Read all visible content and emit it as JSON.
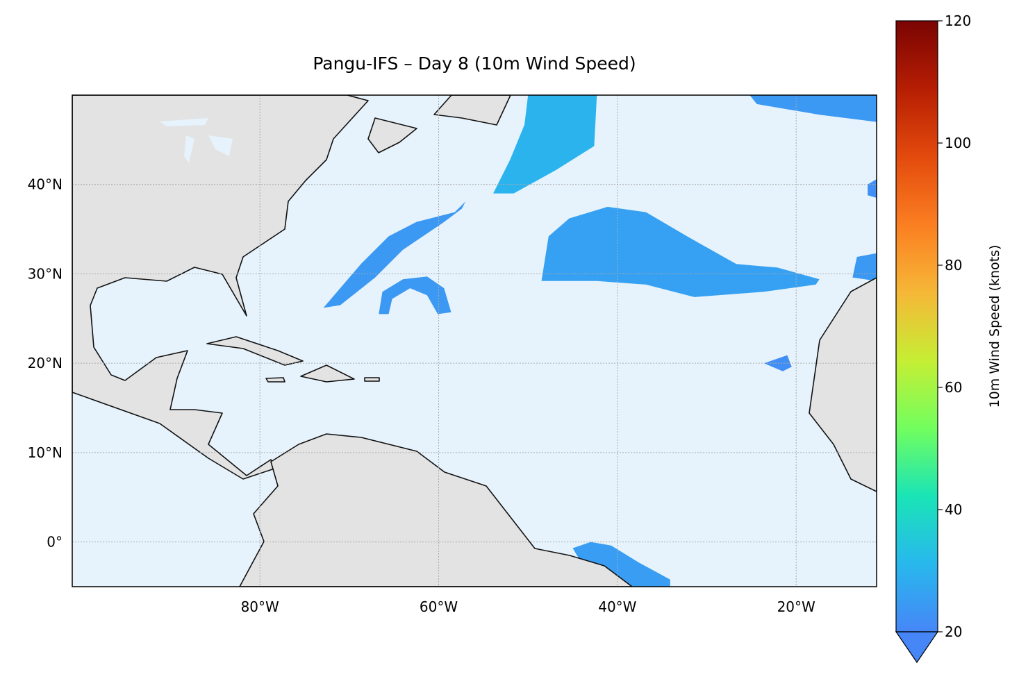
{
  "chart_data": {
    "type": "map",
    "title": "Pangu-IFS – Day 8 (10m Wind Speed)",
    "xlim": [
      -101,
      -11
    ],
    "ylim": [
      -5,
      50
    ],
    "xticks": [
      {
        "value": -80,
        "label": "80°W"
      },
      {
        "value": -60,
        "label": "60°W"
      },
      {
        "value": -40,
        "label": "40°W"
      },
      {
        "value": -20,
        "label": "20°W"
      }
    ],
    "yticks": [
      {
        "value": 0,
        "label": "0°"
      },
      {
        "value": 10,
        "label": "10°N"
      },
      {
        "value": 20,
        "label": "20°N"
      },
      {
        "value": 30,
        "label": "30°N"
      },
      {
        "value": 40,
        "label": "40°N"
      }
    ],
    "grid": true,
    "colorbar": {
      "label": "10m Wind Speed (knots)",
      "lim": [
        20,
        120
      ],
      "ticks": [
        20,
        40,
        60,
        80,
        100,
        120
      ],
      "colormap": [
        "#4686f7",
        "#28b8ed",
        "#1ae4b6",
        "#72fe5e",
        "#c6ee34",
        "#f6b737",
        "#fb7e21",
        "#e34a0d",
        "#b61e03",
        "#7a0403"
      ]
    },
    "regions": [
      {
        "speed": 30,
        "lon": [
          -50.0,
          -42.3,
          -42.6,
          -46.9,
          -51.6,
          -53.9,
          -52.0,
          -50.4
        ],
        "lat": [
          50,
          50,
          44.3,
          41.6,
          39.0,
          39.0,
          42.8,
          46.7
        ]
      },
      {
        "speed": 24,
        "lon": [
          -25.2,
          -11,
          -11,
          -17.4,
          -24.4
        ],
        "lat": [
          50,
          50,
          47.0,
          47.8,
          49.0
        ]
      },
      {
        "speed": 24,
        "lon": [
          -72.9,
          -68.7,
          -65.6,
          -62.5,
          -58.2,
          -57.0,
          -57.4,
          -59.4,
          -64.0,
          -67.1,
          -71.0
        ],
        "lat": [
          26.2,
          31.1,
          34.2,
          35.8,
          36.9,
          38.1,
          37.3,
          35.8,
          32.7,
          29.6,
          26.5
        ]
      },
      {
        "speed": 24,
        "lon": [
          -66.7,
          -66.3,
          -64.0,
          -61.3,
          -59.4,
          -58.6,
          -60.1,
          -61.3,
          -63.2,
          -65.2,
          -65.6
        ],
        "lat": [
          25.5,
          28.0,
          29.4,
          29.7,
          28.4,
          25.7,
          25.5,
          27.6,
          28.4,
          27.2,
          25.5
        ]
      },
      {
        "speed": 26,
        "lon": [
          -48.5,
          -47.7,
          -45.4,
          -41.1,
          -36.8,
          -32.2,
          -26.7,
          -22.1,
          -17.4,
          -17.8,
          -23.6,
          -31.4,
          -36.8,
          -42.3
        ],
        "lat": [
          29.2,
          34.2,
          36.2,
          37.5,
          36.9,
          34.2,
          31.1,
          30.7,
          29.4,
          28.8,
          28.0,
          27.4,
          28.8,
          29.2
        ]
      },
      {
        "speed": 25,
        "lon": [
          -45.0,
          -43.0,
          -40.7,
          -37.6,
          -34.1,
          -34.1,
          -41.5,
          -43.8
        ],
        "lat": [
          -0.7,
          0.0,
          -0.4,
          -2.3,
          -4.2,
          -5.0,
          -5.0,
          -2.7
        ]
      },
      {
        "speed": 24,
        "lon": [
          -13.7,
          -13.2,
          -11,
          -11
        ],
        "lat": [
          29.6,
          31.9,
          32.3,
          29.2
        ]
      },
      {
        "speed": 22,
        "lon": [
          -23.6,
          -21.0,
          -20.5,
          -21.5
        ],
        "lat": [
          20.0,
          20.9,
          19.6,
          19.1
        ]
      },
      {
        "speed": 22,
        "lon": [
          -12.0,
          -11,
          -11,
          -12.0
        ],
        "lat": [
          40.0,
          40.6,
          38.5,
          38.8
        ]
      }
    ]
  }
}
